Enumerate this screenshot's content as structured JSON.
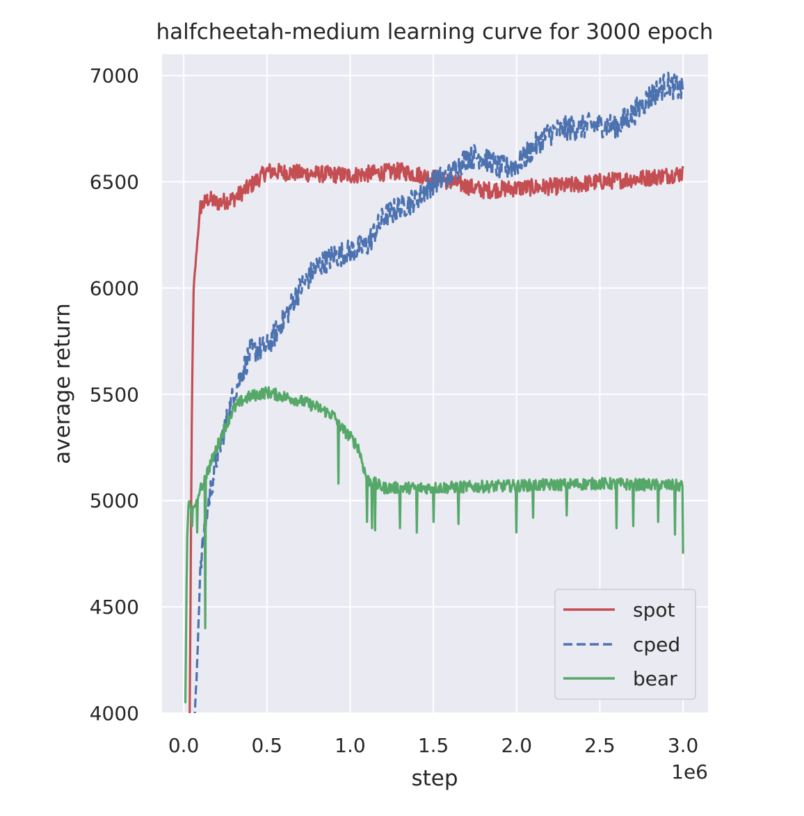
{
  "chart_data": {
    "type": "line",
    "title": "halfcheetah-medium learning curve for 3000 epoch",
    "xlabel": "step",
    "ylabel": "average return",
    "x_offset_label": "1e6",
    "xlim": [
      -0.13,
      3.15
    ],
    "ylim": [
      4000,
      7100
    ],
    "x_ticks": [
      0.0,
      0.5,
      1.0,
      1.5,
      2.0,
      2.5,
      3.0
    ],
    "x_tick_labels": [
      "0.0",
      "0.5",
      "1.0",
      "1.5",
      "2.0",
      "2.5",
      "3.0"
    ],
    "y_ticks": [
      4000,
      4500,
      5000,
      5500,
      6000,
      6500,
      7000
    ],
    "y_tick_labels": [
      "4000",
      "4500",
      "5000",
      "5500",
      "6000",
      "6500",
      "7000"
    ],
    "grid": true,
    "legend_position": "bottom-right",
    "series": [
      {
        "name": "spot",
        "color": "#c44e52",
        "dash": "solid",
        "noise": 40,
        "dips": [],
        "points": [
          [
            0.03,
            3400
          ],
          [
            0.04,
            4400
          ],
          [
            0.05,
            5500
          ],
          [
            0.06,
            6000
          ],
          [
            0.08,
            6200
          ],
          [
            0.1,
            6380
          ],
          [
            0.15,
            6420
          ],
          [
            0.2,
            6400
          ],
          [
            0.3,
            6420
          ],
          [
            0.4,
            6480
          ],
          [
            0.5,
            6550
          ],
          [
            0.7,
            6540
          ],
          [
            1.0,
            6530
          ],
          [
            1.3,
            6550
          ],
          [
            1.5,
            6520
          ],
          [
            1.8,
            6460
          ],
          [
            2.0,
            6470
          ],
          [
            2.3,
            6480
          ],
          [
            2.5,
            6500
          ],
          [
            2.8,
            6520
          ],
          [
            3.0,
            6540
          ]
        ]
      },
      {
        "name": "cped",
        "color": "#4c72b0",
        "dash": "dashed",
        "noise": 60,
        "dips": [],
        "points": [
          [
            0.04,
            3600
          ],
          [
            0.06,
            3900
          ],
          [
            0.08,
            4200
          ],
          [
            0.1,
            4700
          ],
          [
            0.15,
            5000
          ],
          [
            0.2,
            5200
          ],
          [
            0.3,
            5500
          ],
          [
            0.4,
            5700
          ],
          [
            0.5,
            5720
          ],
          [
            0.6,
            5850
          ],
          [
            0.7,
            6000
          ],
          [
            0.8,
            6100
          ],
          [
            0.9,
            6150
          ],
          [
            1.0,
            6170
          ],
          [
            1.1,
            6200
          ],
          [
            1.2,
            6330
          ],
          [
            1.3,
            6380
          ],
          [
            1.4,
            6420
          ],
          [
            1.5,
            6500
          ],
          [
            1.6,
            6530
          ],
          [
            1.7,
            6620
          ],
          [
            1.8,
            6620
          ],
          [
            1.9,
            6560
          ],
          [
            2.0,
            6580
          ],
          [
            2.1,
            6660
          ],
          [
            2.2,
            6730
          ],
          [
            2.3,
            6750
          ],
          [
            2.4,
            6760
          ],
          [
            2.5,
            6770
          ],
          [
            2.6,
            6760
          ],
          [
            2.7,
            6820
          ],
          [
            2.8,
            6900
          ],
          [
            2.9,
            6960
          ],
          [
            3.0,
            6930
          ]
        ]
      },
      {
        "name": "bear",
        "color": "#55a868",
        "dash": "solid",
        "noise": 28,
        "dips": [
          [
            0.05,
            4880
          ],
          [
            0.08,
            4850
          ],
          [
            0.13,
            4400
          ],
          [
            0.93,
            5080
          ],
          [
            1.1,
            4900
          ],
          [
            1.13,
            4870
          ],
          [
            1.15,
            4860
          ],
          [
            1.3,
            4870
          ],
          [
            1.4,
            4850
          ],
          [
            1.5,
            4900
          ],
          [
            1.65,
            4890
          ],
          [
            2.0,
            4850
          ],
          [
            2.1,
            4920
          ],
          [
            2.3,
            4930
          ],
          [
            2.6,
            4870
          ],
          [
            2.7,
            4880
          ],
          [
            2.85,
            4900
          ],
          [
            2.95,
            4840
          ],
          [
            3.0,
            4750
          ]
        ],
        "points": [
          [
            0.01,
            4050
          ],
          [
            0.02,
            4800
          ],
          [
            0.03,
            5000
          ],
          [
            0.05,
            4950
          ],
          [
            0.08,
            5000
          ],
          [
            0.1,
            5050
          ],
          [
            0.15,
            5150
          ],
          [
            0.2,
            5250
          ],
          [
            0.25,
            5350
          ],
          [
            0.3,
            5430
          ],
          [
            0.35,
            5470
          ],
          [
            0.4,
            5490
          ],
          [
            0.5,
            5510
          ],
          [
            0.6,
            5490
          ],
          [
            0.7,
            5470
          ],
          [
            0.8,
            5440
          ],
          [
            0.9,
            5400
          ],
          [
            0.95,
            5340
          ],
          [
            1.0,
            5300
          ],
          [
            1.05,
            5250
          ],
          [
            1.1,
            5100
          ],
          [
            1.2,
            5060
          ],
          [
            1.5,
            5060
          ],
          [
            2.0,
            5070
          ],
          [
            2.5,
            5080
          ],
          [
            3.0,
            5070
          ]
        ]
      }
    ]
  }
}
